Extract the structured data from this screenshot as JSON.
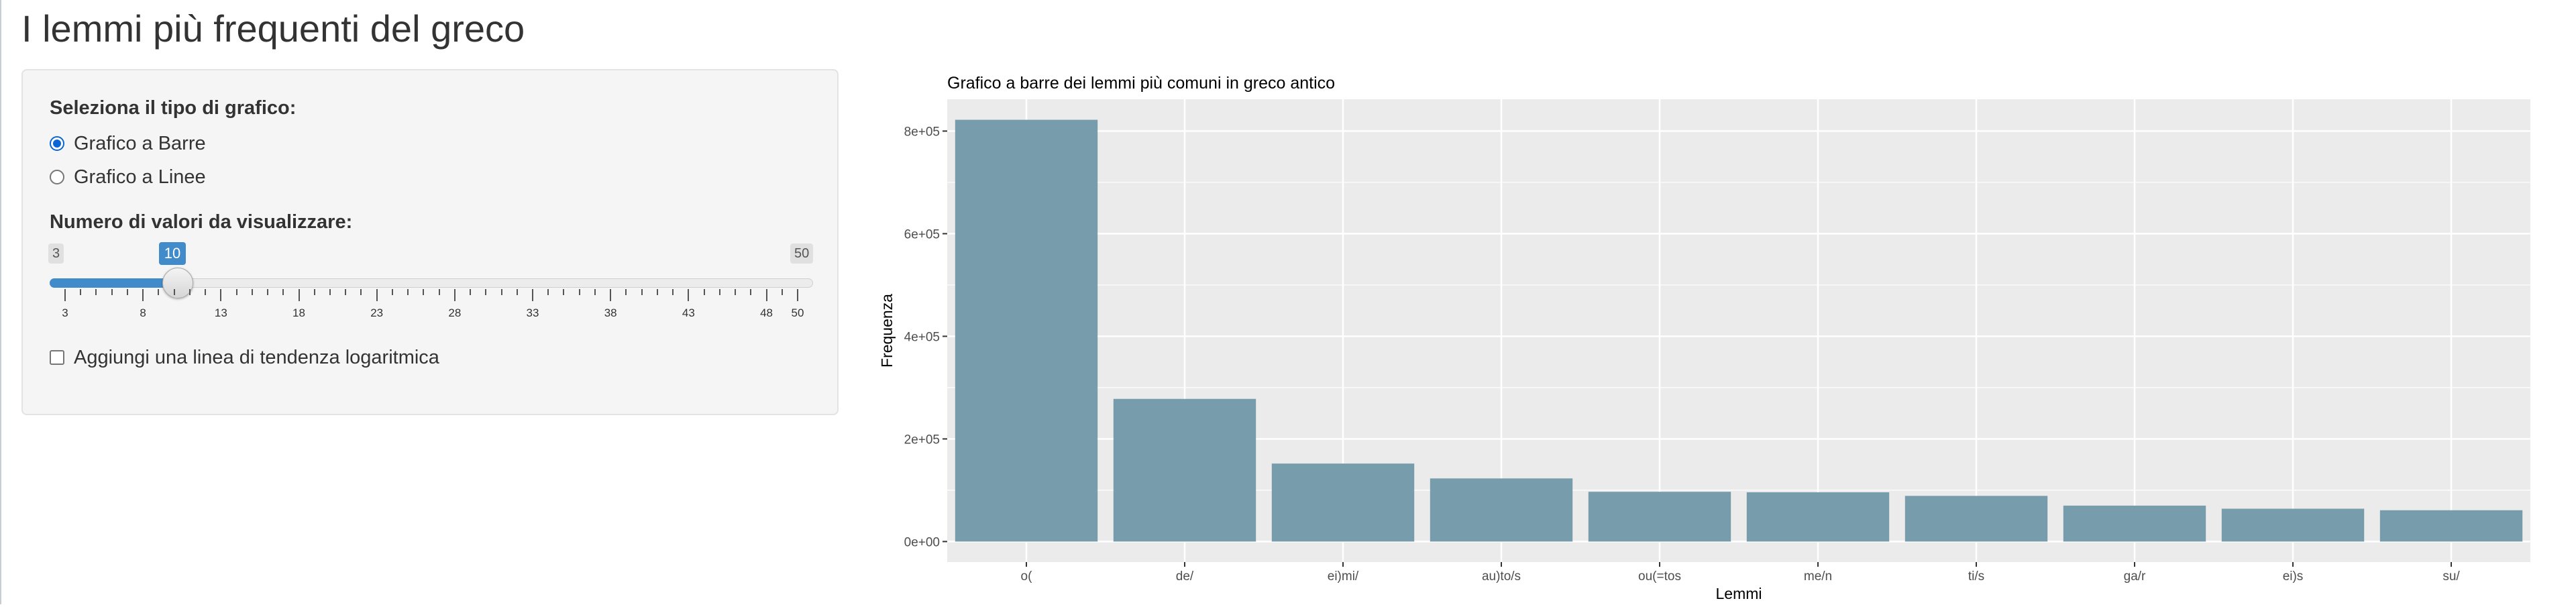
{
  "page": {
    "title": "I lemmi più frequenti del greco"
  },
  "sidebar": {
    "chart_type_label": "Seleziona il tipo di grafico:",
    "options": [
      {
        "label": "Grafico a Barre",
        "checked": true
      },
      {
        "label": "Grafico a Linee",
        "checked": false
      }
    ],
    "count_label": "Numero di valori da visualizzare:",
    "slider": {
      "min": 3,
      "max": 50,
      "value": 10,
      "min_label": "3",
      "max_label": "50",
      "value_label": "10",
      "tick_labels": [
        "3",
        "8",
        "13",
        "18",
        "23",
        "28",
        "33",
        "38",
        "43",
        "48",
        "50"
      ]
    },
    "log_trend_label": "Aggiungi una linea di tendenza logaritmica",
    "log_trend_checked": false
  },
  "chart_data": {
    "type": "bar",
    "title": "Grafico a barre dei lemmi più comuni in greco antico",
    "xlabel": "Lemmi",
    "ylabel": "Frequenza",
    "categories": [
      "o(",
      "de/",
      "ei)mi/",
      "au)to/s",
      "ou(=tos",
      "me/n",
      "ti/s",
      "ga/r",
      "ei)s",
      "su/"
    ],
    "values": [
      822000,
      278000,
      152000,
      123000,
      97000,
      96000,
      89000,
      70000,
      64000,
      61000
    ],
    "ylim": [
      -40000,
      862000
    ],
    "y_ticks": [
      0,
      200000,
      400000,
      600000,
      800000
    ],
    "y_tick_labels": [
      "0e+00",
      "2e+05",
      "4e+05",
      "6e+05",
      "8e+05"
    ],
    "grid": true,
    "colors": {
      "bar": "#779cab",
      "panel": "#ebebeb",
      "grid": "#ffffff"
    }
  }
}
